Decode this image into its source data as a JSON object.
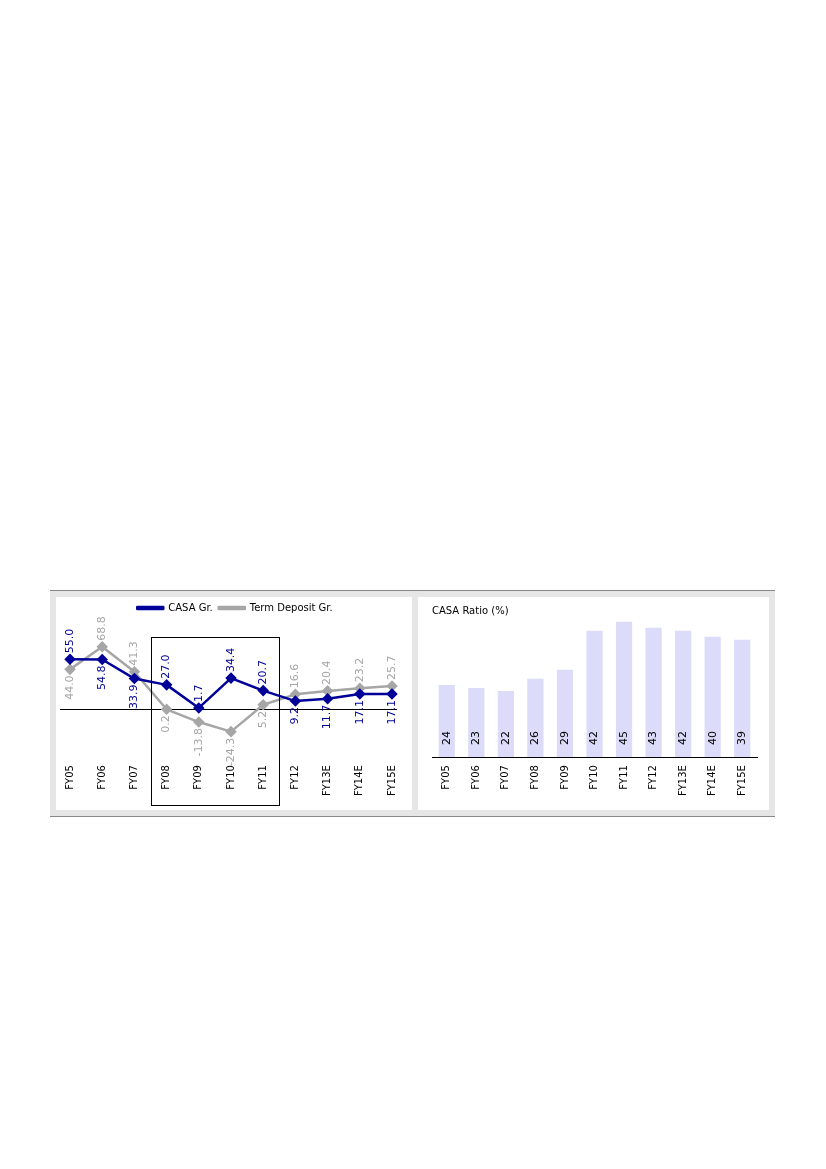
{
  "chart_data": [
    {
      "type": "line",
      "categories": [
        "FY05",
        "FY06",
        "FY07",
        "FY08",
        "FY09",
        "FY10",
        "FY11",
        "FY12",
        "FY13E",
        "FY14E",
        "FY15E"
      ],
      "series": [
        {
          "name": "CASA Gr.",
          "color": "#000099",
          "values": [
            55.0,
            54.8,
            33.9,
            27.0,
            1.7,
            34.4,
            20.7,
            9.2,
            11.7,
            17.1,
            17.1
          ],
          "value_labels": [
            "55.0",
            "54.8",
            "33.9",
            "27.0",
            "1.7",
            "34.4",
            "20.7",
            "9.2",
            "11.7",
            "17.1",
            "17.1"
          ]
        },
        {
          "name": "Term Deposit Gr.",
          "color": "#a6a6a6",
          "values": [
            44.0,
            68.8,
            41.3,
            0.2,
            -13.8,
            -24.3,
            5.2,
            16.6,
            20.4,
            23.2,
            25.7
          ],
          "value_labels": [
            "44.0",
            "68.8",
            "41.3",
            "0.2",
            "-13.8",
            "-24.3",
            "5.2",
            "16.6",
            "20.4",
            "23.2",
            "25.7"
          ]
        }
      ],
      "marker": "diamond",
      "legend": "top",
      "grid": false,
      "tick_labels": "x"
    },
    {
      "type": "bar",
      "title": "CASA Ratio (%)",
      "categories": [
        "FY05",
        "FY06",
        "FY07",
        "FY08",
        "FY09",
        "FY10",
        "FY11",
        "FY12",
        "FY13E",
        "FY14E",
        "FY15E"
      ],
      "values": [
        24,
        23,
        22,
        26,
        29,
        42,
        45,
        43,
        42,
        40,
        39
      ],
      "color": "#dcdcfa",
      "data_labels": true,
      "grid": false,
      "tick_labels": "x",
      "legend": false
    }
  ]
}
